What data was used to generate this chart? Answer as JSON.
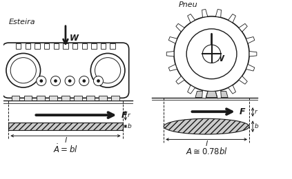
{
  "bg_color": "#ffffff",
  "line_color": "#1a1a1a",
  "label_esteira": "Esteira",
  "label_pneu": "Pneu",
  "label_W": "W",
  "label_F": "F",
  "label_l": "l",
  "label_b": "b",
  "figsize": [
    4.23,
    2.6
  ],
  "dpi": 100
}
